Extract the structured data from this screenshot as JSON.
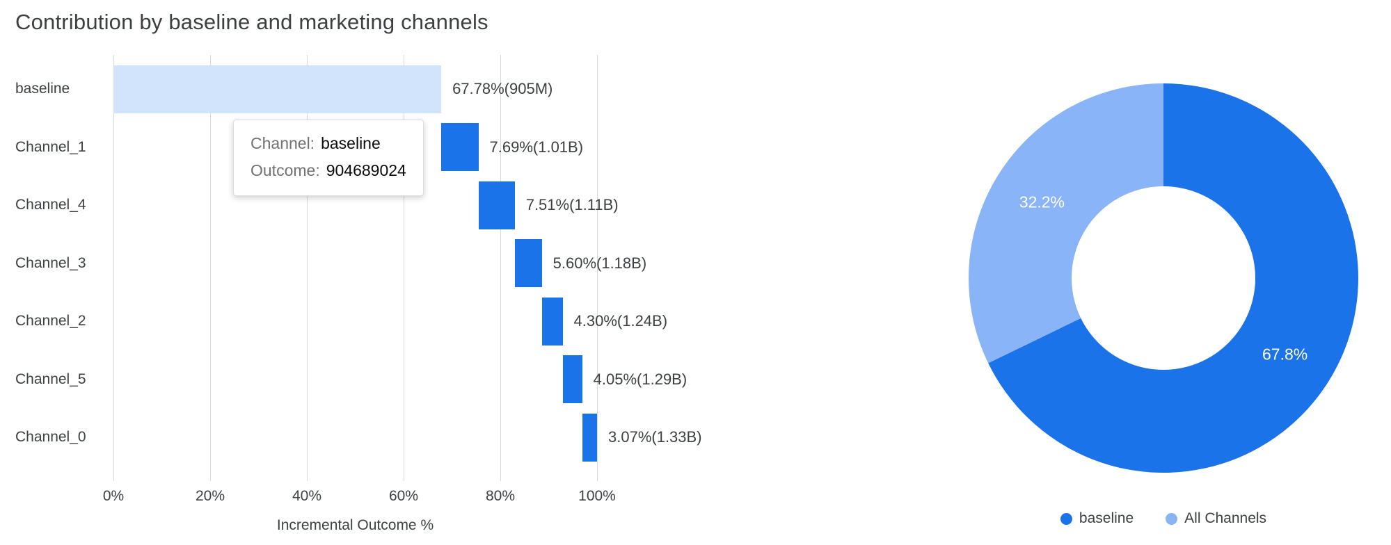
{
  "page": {
    "title": "Contribution by baseline and marketing channels"
  },
  "colors": {
    "baseline_bar": "#d2e3fc",
    "channel_bar": "#1a73e8",
    "donut_primary": "#1a73e8",
    "donut_secondary": "#8ab4f8",
    "grid": "#d9d9d9",
    "axis_text": "#3c4043"
  },
  "tooltip": {
    "channel_label": "Channel:",
    "channel_value": "baseline",
    "outcome_label": "Outcome:",
    "outcome_value": "904689024"
  },
  "chart_data": [
    {
      "type": "bar",
      "subtype": "waterfall",
      "title": "Contribution by baseline and marketing channels",
      "xlabel": "Incremental Outcome %",
      "xlim": [
        0,
        100
      ],
      "x_ticks": [
        "0%",
        "20%",
        "40%",
        "60%",
        "80%",
        "100%"
      ],
      "x_tick_values": [
        0,
        20,
        40,
        60,
        80,
        100
      ],
      "grid": true,
      "categories": [
        "baseline",
        "Channel_1",
        "Channel_4",
        "Channel_3",
        "Channel_2",
        "Channel_5",
        "Channel_0"
      ],
      "bars": [
        {
          "label": "baseline",
          "start": 0,
          "end": 67.78,
          "percent": 67.78,
          "text": "67.78%(905M)",
          "color_key": "baseline"
        },
        {
          "label": "Channel_1",
          "start": 67.78,
          "end": 75.47,
          "percent": 7.69,
          "text": "7.69%(1.01B)",
          "color_key": "channel"
        },
        {
          "label": "Channel_4",
          "start": 75.47,
          "end": 82.98,
          "percent": 7.51,
          "text": "7.51%(1.11B)",
          "color_key": "channel"
        },
        {
          "label": "Channel_3",
          "start": 82.98,
          "end": 88.58,
          "percent": 5.6,
          "text": "5.60%(1.18B)",
          "color_key": "channel"
        },
        {
          "label": "Channel_2",
          "start": 88.58,
          "end": 92.88,
          "percent": 4.3,
          "text": "4.30%(1.24B)",
          "color_key": "channel"
        },
        {
          "label": "Channel_5",
          "start": 92.88,
          "end": 96.93,
          "percent": 4.05,
          "text": "4.05%(1.29B)",
          "color_key": "channel"
        },
        {
          "label": "Channel_0",
          "start": 96.93,
          "end": 100.0,
          "percent": 3.07,
          "text": "3.07%(1.33B)",
          "color_key": "channel"
        }
      ]
    },
    {
      "type": "pie",
      "donut": true,
      "legend_position": "bottom",
      "slices": [
        {
          "name": "baseline",
          "value": 67.8,
          "label": "67.8%",
          "color": "#1a73e8"
        },
        {
          "name": "All Channels",
          "value": 32.2,
          "label": "32.2%",
          "color": "#8ab4f8"
        }
      ],
      "legend": [
        {
          "label": "baseline",
          "color": "#1a73e8"
        },
        {
          "label": "All Channels",
          "color": "#8ab4f8"
        }
      ]
    }
  ]
}
